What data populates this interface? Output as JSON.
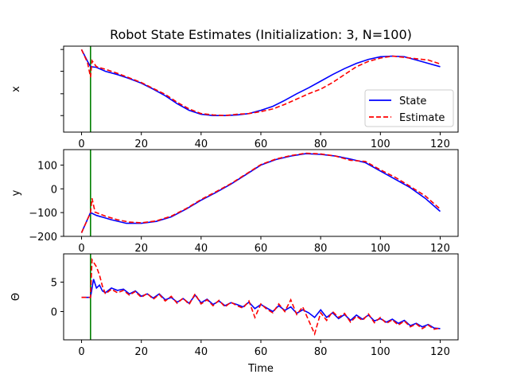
{
  "chart_data": [
    {
      "type": "line",
      "title": "Robot State Estimates (Initialization: 3, N=100)",
      "ylabel": "x",
      "xlabel": "",
      "xlim": [
        -6,
        126
      ],
      "ylim": [
        -0.25,
        1.05
      ],
      "xticks": [
        0,
        20,
        40,
        60,
        80,
        100,
        120
      ],
      "yticks": [
        0.0,
        0.33,
        0.67,
        1.0
      ],
      "ytick_labels": [
        "",
        "",
        "",
        ""
      ],
      "vline_x": 3,
      "legend": {
        "placement": "lower-right"
      },
      "series": [
        {
          "name": "State",
          "color": "#0000ff",
          "style": "solid",
          "points": [
            [
              0,
              1.0
            ],
            [
              2,
              0.82
            ],
            [
              3,
              0.74
            ],
            [
              5,
              0.73
            ],
            [
              8,
              0.67
            ],
            [
              12,
              0.62
            ],
            [
              16,
              0.56
            ],
            [
              20,
              0.49
            ],
            [
              24,
              0.4
            ],
            [
              28,
              0.3
            ],
            [
              32,
              0.18
            ],
            [
              36,
              0.08
            ],
            [
              40,
              0.02
            ],
            [
              44,
              0.0
            ],
            [
              48,
              0.0
            ],
            [
              52,
              0.01
            ],
            [
              56,
              0.03
            ],
            [
              60,
              0.08
            ],
            [
              64,
              0.14
            ],
            [
              68,
              0.23
            ],
            [
              72,
              0.33
            ],
            [
              76,
              0.42
            ],
            [
              80,
              0.52
            ],
            [
              84,
              0.62
            ],
            [
              88,
              0.71
            ],
            [
              92,
              0.79
            ],
            [
              96,
              0.85
            ],
            [
              100,
              0.89
            ],
            [
              104,
              0.9
            ],
            [
              108,
              0.89
            ],
            [
              112,
              0.84
            ],
            [
              116,
              0.79
            ],
            [
              120,
              0.74
            ]
          ]
        },
        {
          "name": "Estimate",
          "color": "#ff0000",
          "style": "dashed",
          "points": [
            [
              0,
              1.0
            ],
            [
              2,
              0.8
            ],
            [
              3,
              0.58
            ],
            [
              3.5,
              0.83
            ],
            [
              5,
              0.74
            ],
            [
              8,
              0.7
            ],
            [
              12,
              0.64
            ],
            [
              16,
              0.57
            ],
            [
              20,
              0.5
            ],
            [
              24,
              0.41
            ],
            [
              28,
              0.32
            ],
            [
              32,
              0.2
            ],
            [
              36,
              0.1
            ],
            [
              40,
              0.03
            ],
            [
              44,
              0.01
            ],
            [
              48,
              0.0
            ],
            [
              52,
              0.02
            ],
            [
              56,
              0.03
            ],
            [
              60,
              0.06
            ],
            [
              64,
              0.1
            ],
            [
              68,
              0.17
            ],
            [
              72,
              0.25
            ],
            [
              76,
              0.33
            ],
            [
              80,
              0.4
            ],
            [
              84,
              0.5
            ],
            [
              88,
              0.62
            ],
            [
              92,
              0.74
            ],
            [
              96,
              0.82
            ],
            [
              100,
              0.87
            ],
            [
              104,
              0.9
            ],
            [
              108,
              0.88
            ],
            [
              112,
              0.86
            ],
            [
              116,
              0.84
            ],
            [
              120,
              0.78
            ]
          ]
        }
      ]
    },
    {
      "type": "line",
      "title": "",
      "ylabel": "y",
      "xlabel": "",
      "xlim": [
        -6,
        126
      ],
      "ylim": [
        -200,
        165
      ],
      "xticks": [
        0,
        20,
        40,
        60,
        80,
        100,
        120
      ],
      "yticks": [
        -200,
        -100,
        0,
        100
      ],
      "ytick_labels": [
        "−200",
        "−100",
        "0",
        "100"
      ],
      "vline_x": 3,
      "series": [
        {
          "name": "State",
          "color": "#0000ff",
          "style": "solid",
          "points": [
            [
              0,
              -185
            ],
            [
              3,
              -100
            ],
            [
              5,
              -112
            ],
            [
              10,
              -130
            ],
            [
              15,
              -145
            ],
            [
              20,
              -145
            ],
            [
              25,
              -137
            ],
            [
              30,
              -118
            ],
            [
              35,
              -85
            ],
            [
              40,
              -48
            ],
            [
              45,
              -15
            ],
            [
              50,
              20
            ],
            [
              55,
              60
            ],
            [
              60,
              100
            ],
            [
              65,
              123
            ],
            [
              70,
              138
            ],
            [
              75,
              148
            ],
            [
              80,
              145
            ],
            [
              85,
              138
            ],
            [
              90,
              125
            ],
            [
              95,
              110
            ],
            [
              100,
              75
            ],
            [
              105,
              40
            ],
            [
              110,
              5
            ],
            [
              115,
              -40
            ],
            [
              120,
              -95
            ]
          ]
        },
        {
          "name": "Estimate",
          "color": "#ff0000",
          "style": "dashed",
          "points": [
            [
              0,
              -185
            ],
            [
              3,
              -100
            ],
            [
              3.5,
              -40
            ],
            [
              4.5,
              -98
            ],
            [
              8,
              -115
            ],
            [
              12,
              -130
            ],
            [
              16,
              -140
            ],
            [
              20,
              -143
            ],
            [
              25,
              -135
            ],
            [
              30,
              -115
            ],
            [
              35,
              -83
            ],
            [
              40,
              -45
            ],
            [
              45,
              -12
            ],
            [
              50,
              22
            ],
            [
              55,
              62
            ],
            [
              60,
              102
            ],
            [
              65,
              125
            ],
            [
              70,
              140
            ],
            [
              75,
              150
            ],
            [
              80,
              147
            ],
            [
              85,
              138
            ],
            [
              90,
              120
            ],
            [
              95,
              115
            ],
            [
              100,
              80
            ],
            [
              105,
              48
            ],
            [
              110,
              10
            ],
            [
              115,
              -30
            ],
            [
              120,
              -85
            ]
          ]
        }
      ]
    },
    {
      "type": "line",
      "title": "",
      "ylabel": "Θ",
      "xlabel": "Time",
      "xlim": [
        -6,
        126
      ],
      "ylim": [
        -4.8,
        9.8
      ],
      "xticks": [
        0,
        20,
        40,
        60,
        80,
        100,
        120
      ],
      "yticks": [
        0,
        5
      ],
      "ytick_labels": [
        "0",
        "5"
      ],
      "vline_x": 3,
      "series": [
        {
          "name": "State",
          "color": "#0000ff",
          "style": "solid",
          "points": [
            [
              0,
              2.4
            ],
            [
              2,
              2.4
            ],
            [
              3,
              2.4
            ],
            [
              4,
              5.5
            ],
            [
              5,
              4.0
            ],
            [
              6,
              4.5
            ],
            [
              7,
              3.5
            ],
            [
              8,
              3.2
            ],
            [
              10,
              4.0
            ],
            [
              12,
              3.6
            ],
            [
              14,
              3.8
            ],
            [
              16,
              3.0
            ],
            [
              18,
              3.5
            ],
            [
              20,
              2.6
            ],
            [
              22,
              3.0
            ],
            [
              24,
              2.3
            ],
            [
              26,
              3.0
            ],
            [
              28,
              2.0
            ],
            [
              30,
              2.4
            ],
            [
              32,
              1.6
            ],
            [
              34,
              2.2
            ],
            [
              36,
              1.4
            ],
            [
              38,
              2.8
            ],
            [
              40,
              1.5
            ],
            [
              42,
              2.1
            ],
            [
              44,
              1.2
            ],
            [
              46,
              1.8
            ],
            [
              48,
              1.0
            ],
            [
              50,
              1.5
            ],
            [
              52,
              1.2
            ],
            [
              54,
              0.8
            ],
            [
              56,
              1.6
            ],
            [
              58,
              0.5
            ],
            [
              60,
              1.2
            ],
            [
              62,
              0.6
            ],
            [
              64,
              0.0
            ],
            [
              66,
              1.0
            ],
            [
              68,
              0.2
            ],
            [
              70,
              0.8
            ],
            [
              72,
              -0.3
            ],
            [
              74,
              0.3
            ],
            [
              76,
              -0.2
            ],
            [
              78,
              -1.0
            ],
            [
              80,
              0.3
            ],
            [
              82,
              -1.0
            ],
            [
              84,
              -0.2
            ],
            [
              86,
              -1.2
            ],
            [
              88,
              -0.5
            ],
            [
              90,
              -1.5
            ],
            [
              92,
              -0.6
            ],
            [
              94,
              -1.3
            ],
            [
              96,
              -0.6
            ],
            [
              98,
              -1.6
            ],
            [
              100,
              -1.2
            ],
            [
              102,
              -1.8
            ],
            [
              104,
              -1.3
            ],
            [
              106,
              -2.0
            ],
            [
              108,
              -1.5
            ],
            [
              110,
              -2.4
            ],
            [
              112,
              -2.0
            ],
            [
              114,
              -2.6
            ],
            [
              116,
              -2.2
            ],
            [
              118,
              -2.8
            ],
            [
              120,
              -2.9
            ]
          ]
        },
        {
          "name": "Estimate",
          "color": "#ff0000",
          "style": "dashed",
          "points": [
            [
              0,
              2.4
            ],
            [
              2,
              2.4
            ],
            [
              3,
              2.4
            ],
            [
              3.5,
              8.8
            ],
            [
              5,
              7.6
            ],
            [
              6,
              6.2
            ],
            [
              7,
              4.3
            ],
            [
              8,
              3.0
            ],
            [
              10,
              3.8
            ],
            [
              12,
              3.2
            ],
            [
              14,
              3.6
            ],
            [
              16,
              2.8
            ],
            [
              18,
              3.4
            ],
            [
              20,
              2.4
            ],
            [
              22,
              3.1
            ],
            [
              24,
              2.1
            ],
            [
              26,
              2.9
            ],
            [
              28,
              1.8
            ],
            [
              30,
              2.6
            ],
            [
              32,
              1.4
            ],
            [
              34,
              2.3
            ],
            [
              36,
              1.2
            ],
            [
              38,
              3.0
            ],
            [
              40,
              1.3
            ],
            [
              42,
              2.0
            ],
            [
              44,
              1.0
            ],
            [
              46,
              1.9
            ],
            [
              48,
              0.8
            ],
            [
              50,
              1.6
            ],
            [
              52,
              1.0
            ],
            [
              54,
              0.6
            ],
            [
              56,
              1.8
            ],
            [
              58,
              -1.0
            ],
            [
              60,
              1.3
            ],
            [
              62,
              0.4
            ],
            [
              64,
              -0.2
            ],
            [
              66,
              1.3
            ],
            [
              68,
              0.0
            ],
            [
              70,
              2.0
            ],
            [
              72,
              -0.5
            ],
            [
              74,
              0.8
            ],
            [
              76,
              -1.5
            ],
            [
              78,
              -3.8
            ],
            [
              80,
              -0.2
            ],
            [
              82,
              -1.5
            ],
            [
              84,
              0.0
            ],
            [
              86,
              -1.0
            ],
            [
              88,
              -0.3
            ],
            [
              90,
              -1.8
            ],
            [
              92,
              -0.8
            ],
            [
              94,
              -1.5
            ],
            [
              96,
              -0.4
            ],
            [
              98,
              -1.9
            ],
            [
              100,
              -1.0
            ],
            [
              102,
              -2.0
            ],
            [
              104,
              -1.4
            ],
            [
              106,
              -2.3
            ],
            [
              108,
              -1.6
            ],
            [
              110,
              -2.6
            ],
            [
              112,
              -2.1
            ],
            [
              114,
              -2.9
            ],
            [
              116,
              -2.3
            ],
            [
              118,
              -3.0
            ],
            [
              120,
              -2.8
            ]
          ]
        }
      ]
    }
  ]
}
